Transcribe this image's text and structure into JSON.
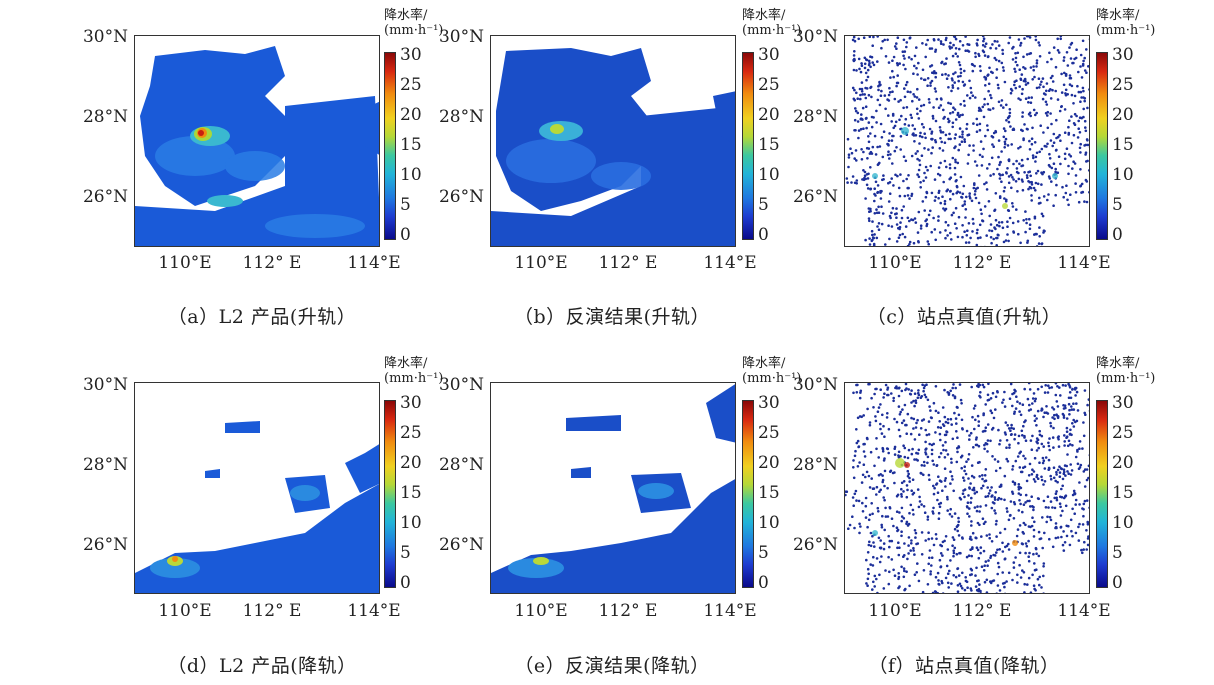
{
  "colorbar": {
    "title_line1": "降水率/",
    "title_line2": "(mm·h⁻¹)",
    "ticks": [
      "30",
      "25",
      "20",
      "15",
      "10",
      "5",
      "0"
    ],
    "range": [
      0,
      30
    ]
  },
  "axes": {
    "y_ticks": [
      "30°N",
      "28°N",
      "26°N"
    ],
    "x_ticks": [
      "110°E",
      "112° E",
      "114°E"
    ]
  },
  "captions": [
    "（a）L2 产品(升轨）",
    "（b）反演结果(升轨）",
    "（c）站点真值(升轨）",
    "（d）L2 产品(降轨）",
    "（e）反演结果(降轨）",
    "（f）站点真值(降轨）"
  ],
  "chart_data": [
    {
      "type": "heatmap",
      "panel": "a",
      "title": "",
      "xlabel": "",
      "ylabel": "",
      "x_ticks": [
        "110°E",
        "112° E",
        "114°E"
      ],
      "y_ticks": [
        "30°N",
        "28°N",
        "26°N"
      ],
      "colorbar_range": [
        0,
        30
      ]
    },
    {
      "type": "heatmap",
      "panel": "b",
      "title": "",
      "xlabel": "",
      "ylabel": "",
      "x_ticks": [
        "110°E",
        "112° E",
        "114°E"
      ],
      "y_ticks": [
        "30°N",
        "28°N",
        "26°N"
      ],
      "colorbar_range": [
        0,
        30
      ]
    },
    {
      "type": "scatter",
      "panel": "c",
      "title": "",
      "xlabel": "",
      "ylabel": "",
      "x_ticks": [
        "110°E",
        "112° E",
        "114°E"
      ],
      "y_ticks": [
        "30°N",
        "28°N",
        "26°N"
      ],
      "colorbar_range": [
        0,
        30
      ]
    },
    {
      "type": "heatmap",
      "panel": "d",
      "title": "",
      "xlabel": "",
      "ylabel": "",
      "x_ticks": [
        "110°E",
        "112° E",
        "114°E"
      ],
      "y_ticks": [
        "30°N",
        "28°N",
        "26°N"
      ],
      "colorbar_range": [
        0,
        30
      ]
    },
    {
      "type": "heatmap",
      "panel": "e",
      "title": "",
      "xlabel": "",
      "ylabel": "",
      "x_ticks": [
        "110°E",
        "112° E",
        "114°E"
      ],
      "y_ticks": [
        "30°N",
        "28°N",
        "26°N"
      ],
      "colorbar_range": [
        0,
        30
      ]
    },
    {
      "type": "scatter",
      "panel": "f",
      "title": "",
      "xlabel": "",
      "ylabel": "",
      "x_ticks": [
        "110°E",
        "112° E",
        "114°E"
      ],
      "y_ticks": [
        "30°N",
        "28°N",
        "26°N"
      ],
      "colorbar_range": [
        0,
        30
      ]
    }
  ]
}
